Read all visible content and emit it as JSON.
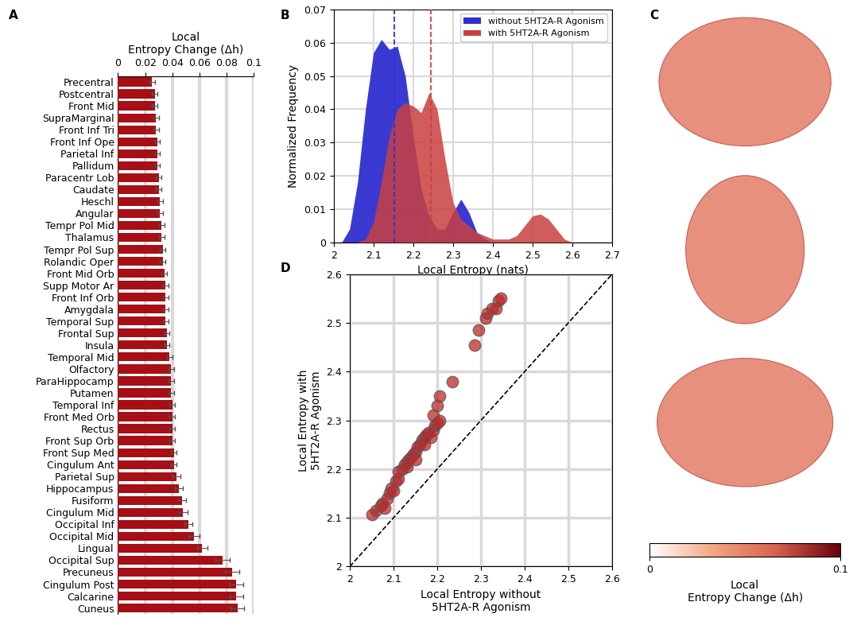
{
  "chart_data": [
    {
      "panel": "A",
      "type": "bar",
      "orientation": "horizontal",
      "xlabel": "Local\nEntropy Change (Δh)",
      "categories": [
        "Precentral",
        "Postcentral",
        "Front Mid",
        "SupraMarginal",
        "Front Inf Tri",
        "Front Inf Ope",
        "Parietal Inf",
        "Pallidum",
        "Paracentr Lob",
        "Caudate",
        "Heschl",
        "Angular",
        "Tempr Pol Mid",
        "Thalamus",
        "Tempr Pol Sup",
        "Rolandic Oper",
        "Front Mid Orb",
        "Supp Motor Ar",
        "Front Inf Orb",
        "Amygdala",
        "Temporal Sup",
        "Frontal Sup",
        "Insula",
        "Temporal Mid",
        "Olfactory",
        "ParaHippocamp",
        "Putamen",
        "Temporal Inf",
        "Front Med Orb",
        "Rectus",
        "Front Sup Orb",
        "Front Sup Med",
        "Cingulum Ant",
        "Parietal Sup",
        "Hippocampus",
        "Fusiform",
        "Cingulum Mid",
        "Occipital Inf",
        "Occipital Mid",
        "Lingual",
        "Occipital Sup",
        "Precuneus",
        "Cingulum Post",
        "Calcarine",
        "Cuneus"
      ],
      "values": [
        0.025,
        0.027,
        0.027,
        0.028,
        0.028,
        0.029,
        0.029,
        0.029,
        0.03,
        0.03,
        0.031,
        0.031,
        0.032,
        0.032,
        0.033,
        0.033,
        0.034,
        0.035,
        0.035,
        0.035,
        0.035,
        0.036,
        0.036,
        0.038,
        0.039,
        0.039,
        0.039,
        0.04,
        0.04,
        0.04,
        0.04,
        0.041,
        0.041,
        0.043,
        0.045,
        0.047,
        0.048,
        0.052,
        0.056,
        0.062,
        0.077,
        0.084,
        0.087,
        0.087,
        0.088
      ],
      "errors": [
        0.002,
        0.002,
        0.002,
        0.002,
        0.002,
        0.002,
        0.002,
        0.002,
        0.002,
        0.002,
        0.002,
        0.002,
        0.002,
        0.002,
        0.002,
        0.002,
        0.002,
        0.002,
        0.002,
        0.002,
        0.002,
        0.002,
        0.002,
        0.002,
        0.002,
        0.002,
        0.002,
        0.002,
        0.002,
        0.002,
        0.002,
        0.002,
        0.002,
        0.003,
        0.003,
        0.003,
        0.003,
        0.003,
        0.004,
        0.004,
        0.005,
        0.005,
        0.005,
        0.005,
        0.005
      ],
      "color": "#a50f15",
      "xlim": [
        0,
        0.1
      ],
      "xticks": [
        0,
        0.02,
        0.04,
        0.06,
        0.08,
        0.1
      ],
      "grid": true
    },
    {
      "panel": "B",
      "type": "area",
      "xlabel": "Local Entropy (nats)",
      "ylabel": "Normalized Frequency",
      "x": [
        2.0,
        2.02,
        2.04,
        2.06,
        2.08,
        2.1,
        2.12,
        2.14,
        2.16,
        2.18,
        2.2,
        2.22,
        2.24,
        2.26,
        2.28,
        2.3,
        2.32,
        2.34,
        2.36,
        2.38,
        2.4,
        2.42,
        2.44,
        2.46,
        2.48,
        2.5,
        2.52,
        2.54,
        2.56,
        2.58,
        2.6,
        2.62,
        2.64,
        2.66,
        2.68,
        2.7
      ],
      "series": [
        {
          "name": "without 5HT2A-R Agonism",
          "color": "#2f2fd0",
          "mean": 2.153,
          "values": [
            0,
            0,
            0.004,
            0.018,
            0.04,
            0.057,
            0.061,
            0.058,
            0.059,
            0.05,
            0.032,
            0.016,
            0.008,
            0.004,
            0.004,
            0.009,
            0.013,
            0.009,
            0.003,
            0.001,
            0,
            0,
            0,
            0,
            0,
            0,
            0,
            0,
            0,
            0,
            0,
            0,
            0,
            0,
            0,
            0
          ]
        },
        {
          "name": "with 5HT2A-R Agonism",
          "color": "#c8403f",
          "mean": 2.245,
          "values": [
            0,
            0,
            0,
            0,
            0.001,
            0.006,
            0.018,
            0.032,
            0.04,
            0.042,
            0.041,
            0.039,
            0.045,
            0.04,
            0.025,
            0.012,
            0.007,
            0.005,
            0.003,
            0.002,
            0.001,
            0.001,
            0.001,
            0.002,
            0.005,
            0.008,
            0.0085,
            0.007,
            0.004,
            0.001,
            0,
            0,
            0,
            0,
            0,
            0
          ]
        }
      ],
      "xlim": [
        2,
        2.7
      ],
      "xticks": [
        2,
        2.1,
        2.2,
        2.3,
        2.4,
        2.5,
        2.6,
        2.7
      ],
      "ylim": [
        0,
        0.07
      ],
      "yticks": [
        0,
        0.01,
        0.02,
        0.03,
        0.04,
        0.05,
        0.06,
        0.07
      ],
      "grid": true,
      "legend": "upper right"
    },
    {
      "panel": "C",
      "type": "brain_map",
      "colorbar": {
        "range": [
          0,
          0.1
        ],
        "ticks": [
          0,
          0.1
        ],
        "label": "Local\nEntropy Change (Δh)"
      }
    },
    {
      "panel": "D",
      "type": "scatter",
      "xlabel": "Local Entropy without\n5HT2A-R Agonism",
      "ylabel": "Local Entropy with\n5HT2A-R Agonism",
      "x": [
        2.05,
        2.06,
        2.07,
        2.075,
        2.08,
        2.085,
        2.09,
        2.095,
        2.1,
        2.105,
        2.11,
        2.11,
        2.12,
        2.125,
        2.13,
        2.13,
        2.135,
        2.14,
        2.145,
        2.15,
        2.15,
        2.155,
        2.16,
        2.165,
        2.17,
        2.17,
        2.175,
        2.18,
        2.185,
        2.19,
        2.19,
        2.195,
        2.2,
        2.2,
        2.205,
        2.205,
        2.235,
        2.285,
        2.295,
        2.31,
        2.315,
        2.325,
        2.335,
        2.34,
        2.345
      ],
      "values": [
        2.107,
        2.115,
        2.125,
        2.13,
        2.12,
        2.14,
        2.15,
        2.16,
        2.155,
        2.175,
        2.18,
        2.195,
        2.2,
        2.21,
        2.215,
        2.205,
        2.22,
        2.225,
        2.23,
        2.235,
        2.22,
        2.245,
        2.25,
        2.26,
        2.265,
        2.25,
        2.27,
        2.275,
        2.265,
        2.28,
        2.31,
        2.29,
        2.295,
        2.33,
        2.35,
        2.3,
        2.38,
        2.455,
        2.485,
        2.51,
        2.52,
        2.53,
        2.53,
        2.545,
        2.55
      ],
      "color": "#c0282a",
      "marker": "o",
      "xlim": [
        2,
        2.6
      ],
      "xticks": [
        2,
        2.1,
        2.2,
        2.3,
        2.4,
        2.5,
        2.6
      ],
      "ylim": [
        2,
        2.6
      ],
      "yticks": [
        2,
        2.1,
        2.2,
        2.3,
        2.4,
        2.5,
        2.6
      ],
      "grid": true
    }
  ]
}
